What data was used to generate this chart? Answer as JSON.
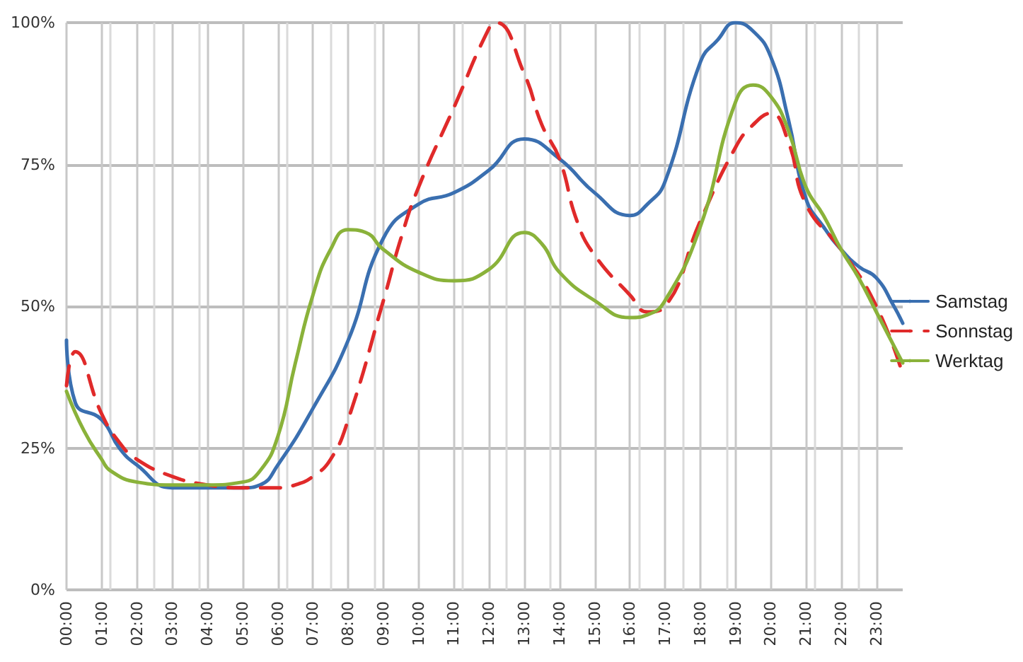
{
  "chart_data": {
    "type": "line",
    "marker": "none",
    "grid": true,
    "legend": "right",
    "xlim": [
      0,
      23.75
    ],
    "xticks": [
      {
        "value": 0,
        "label": "00:00"
      },
      {
        "value": 1,
        "label": "01:00"
      },
      {
        "value": 2,
        "label": "02:00"
      },
      {
        "value": 3,
        "label": "03:00"
      },
      {
        "value": 4,
        "label": "04:00"
      },
      {
        "value": 5,
        "label": "05:00"
      },
      {
        "value": 6,
        "label": "06:00"
      },
      {
        "value": 7,
        "label": "07:00"
      },
      {
        "value": 8,
        "label": "08:00"
      },
      {
        "value": 9,
        "label": "09:00"
      },
      {
        "value": 10,
        "label": "10:00"
      },
      {
        "value": 11,
        "label": "11:00"
      },
      {
        "value": 12,
        "label": "12:00"
      },
      {
        "value": 13,
        "label": "13:00"
      },
      {
        "value": 14,
        "label": "14:00"
      },
      {
        "value": 15,
        "label": "15:00"
      },
      {
        "value": 16,
        "label": "16:00"
      },
      {
        "value": 17,
        "label": "17:00"
      },
      {
        "value": 18,
        "label": "18:00"
      },
      {
        "value": 19,
        "label": "19:00"
      },
      {
        "value": 20,
        "label": "20:00"
      },
      {
        "value": 21,
        "label": "21:00"
      },
      {
        "value": 22,
        "label": "22:00"
      },
      {
        "value": 23,
        "label": "23:00"
      }
    ],
    "ylim": [
      0,
      100
    ],
    "yticks": [
      {
        "value": 0,
        "label": "0%"
      },
      {
        "value": 25,
        "label": "25%"
      },
      {
        "value": 50,
        "label": "50%"
      },
      {
        "value": 75,
        "label": "75%"
      },
      {
        "value": 100,
        "label": "100%"
      }
    ],
    "series": [
      {
        "name": "Samstag",
        "color": "#3a6fb0",
        "line_style": "solid",
        "x": [
          0,
          0.25,
          1,
          1.5,
          2,
          3,
          4,
          5,
          5.5,
          6,
          7,
          8,
          9,
          10,
          11,
          12,
          13,
          14,
          15,
          16,
          16.5,
          17,
          18,
          18.5,
          19,
          19.5,
          20,
          20.5,
          21,
          21.5,
          22,
          22.5,
          23,
          23.5,
          23.75
        ],
        "values": [
          44,
          33,
          30,
          25,
          22,
          18,
          18,
          18,
          18.5,
          22,
          32,
          44,
          62,
          68,
          70,
          74,
          79.5,
          76,
          70,
          66,
          68,
          72,
          93,
          97,
          100,
          98.5,
          94,
          83,
          69,
          64,
          60,
          57,
          55,
          50,
          47
        ]
      },
      {
        "name": "Sonnstag",
        "color": "#e02a2a",
        "line_style": "dashed",
        "x": [
          0,
          0.25,
          1,
          1.5,
          2,
          3,
          4,
          5,
          6,
          6.5,
          7,
          7.5,
          8,
          9,
          9.5,
          10,
          11,
          12,
          12.2,
          13,
          13.5,
          14,
          14.5,
          15,
          16,
          16.5,
          17,
          18,
          19,
          19.5,
          20,
          20.5,
          21,
          22,
          23,
          23.75
        ],
        "values": [
          36,
          42,
          31,
          26,
          23,
          20,
          18.5,
          18,
          18,
          18.5,
          20,
          23,
          30,
          51,
          62,
          71,
          85,
          99,
          100,
          91,
          82,
          76,
          65,
          59,
          52,
          49,
          50,
          65,
          78,
          82,
          84,
          79,
          68,
          60,
          50,
          38
        ]
      },
      {
        "name": "Werktag",
        "color": "#8ab23a",
        "line_style": "solid",
        "x": [
          0,
          0.5,
          1,
          1.25,
          2,
          3,
          4,
          5,
          5.5,
          6,
          6.5,
          7,
          7.5,
          8,
          8.5,
          9,
          10,
          11,
          12,
          13,
          13.5,
          14,
          15,
          16,
          16.5,
          17,
          18,
          19,
          19.5,
          20,
          20.5,
          21,
          21.5,
          22,
          22.5,
          23,
          23.75
        ],
        "values": [
          35,
          28,
          23,
          21,
          19,
          18.5,
          18.5,
          19,
          21,
          27,
          40,
          52,
          60,
          63.5,
          63,
          60,
          56,
          54.5,
          56.5,
          63,
          61,
          56,
          51,
          48,
          48.5,
          51,
          64,
          86,
          89,
          87,
          81,
          71,
          66,
          60,
          55,
          49,
          40
        ]
      }
    ]
  }
}
